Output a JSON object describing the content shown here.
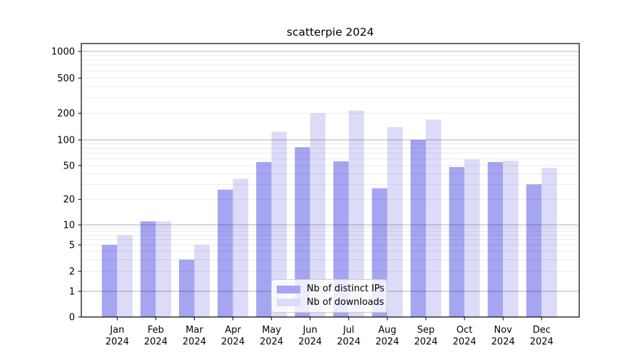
{
  "chart_data": {
    "type": "bar",
    "title": "scatterpie 2024",
    "categories": [
      "Jan",
      "Feb",
      "Mar",
      "Apr",
      "May",
      "Jun",
      "Jul",
      "Aug",
      "Sep",
      "Oct",
      "Nov",
      "Dec"
    ],
    "year_label": "2024",
    "series": [
      {
        "name": "Nb of distinct IPs",
        "color": "#a5a5f2",
        "values": [
          5,
          11,
          3,
          26,
          55,
          82,
          56,
          27,
          100,
          48,
          55,
          30
        ]
      },
      {
        "name": "Nb of downloads",
        "color": "#dcdcf8",
        "values": [
          7,
          11,
          5,
          35,
          124,
          200,
          215,
          140,
          170,
          59,
          57,
          47
        ]
      }
    ],
    "yscale": "symlog",
    "y_ticks": [
      0,
      1,
      2,
      5,
      10,
      20,
      50,
      100,
      200,
      500,
      1000
    ],
    "ylim": [
      0,
      1200
    ],
    "xlabel": "",
    "ylabel": "",
    "grid": true,
    "legend_position": "lower-center-inside"
  }
}
